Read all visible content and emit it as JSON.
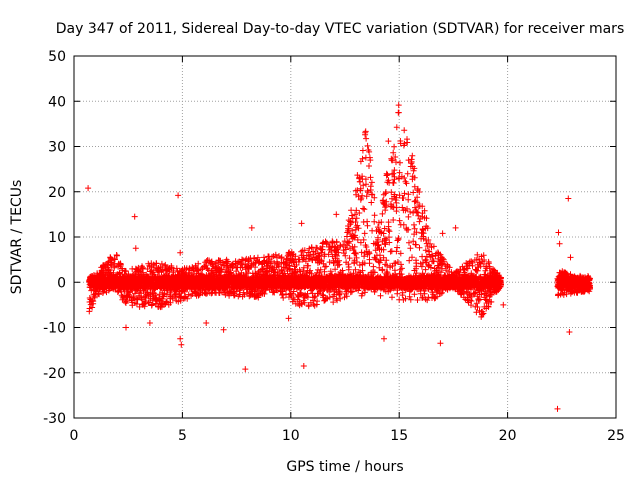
{
  "chart_data": {
    "type": "scatter",
    "title": "Day 347 of 2011, Sidereal Day-to-day VTEC variation (SDTVAR) for receiver mars",
    "xlabel": "GPS time / hours",
    "ylabel": "SDTVAR / TECUs",
    "xlim": [
      0,
      25
    ],
    "ylim": [
      -30,
      50
    ],
    "xticks": [
      0,
      5,
      10,
      15,
      20,
      25
    ],
    "yticks": [
      -30,
      -20,
      -10,
      0,
      10,
      20,
      30,
      40,
      50
    ],
    "grid": true,
    "marker": "+",
    "color": "#ff0000",
    "series": [
      {
        "name": "SDTVAR",
        "envelope_description": "Dense band of points; each entry gives time (hours) and approximate upper/lower extent in TECU",
        "envelope": [
          {
            "x": 0.7,
            "upper": 2.0,
            "lower": -7.5
          },
          {
            "x": 1.0,
            "upper": 2.0,
            "lower": -3.0
          },
          {
            "x": 1.9,
            "upper": 7.0,
            "lower": -1.5
          },
          {
            "x": 2.3,
            "upper": 2.5,
            "lower": -5.0
          },
          {
            "x": 3.7,
            "upper": 4.5,
            "lower": -6.0
          },
          {
            "x": 5.0,
            "upper": 3.0,
            "lower": -4.0
          },
          {
            "x": 6.2,
            "upper": 5.0,
            "lower": -2.5
          },
          {
            "x": 7.2,
            "upper": 5.0,
            "lower": -3.0
          },
          {
            "x": 8.5,
            "upper": 5.5,
            "lower": -3.5
          },
          {
            "x": 9.0,
            "upper": 6.0,
            "lower": -2.0
          },
          {
            "x": 10.5,
            "upper": 7.0,
            "lower": -5.5
          },
          {
            "x": 11.5,
            "upper": 9.0,
            "lower": -5.0
          },
          {
            "x": 12.5,
            "upper": 9.5,
            "lower": -4.0
          },
          {
            "x": 13.5,
            "upper": 35.0,
            "lower": -3.0
          },
          {
            "x": 14.0,
            "upper": 12.0,
            "lower": -3.0
          },
          {
            "x": 15.0,
            "upper": 41.0,
            "lower": -4.0
          },
          {
            "x": 16.5,
            "upper": 9.0,
            "lower": -4.0
          },
          {
            "x": 17.5,
            "upper": 2.0,
            "lower": -1.0
          },
          {
            "x": 18.8,
            "upper": 7.0,
            "lower": -8.0
          },
          {
            "x": 19.7,
            "upper": 1.0,
            "lower": -1.0
          },
          {
            "x": 22.3,
            "upper": 3.0,
            "lower": -3.0
          },
          {
            "x": 23.8,
            "upper": 0.0,
            "lower": -2.0
          }
        ],
        "outliers": [
          [
            0.65,
            20.8
          ],
          [
            2.8,
            14.5
          ],
          [
            2.85,
            7.5
          ],
          [
            4.8,
            19.2
          ],
          [
            4.9,
            -12.5
          ],
          [
            4.95,
            -13.8
          ],
          [
            4.9,
            6.5
          ],
          [
            6.9,
            -10.5
          ],
          [
            7.9,
            -19.2
          ],
          [
            8.2,
            12.0
          ],
          [
            9.9,
            -8.0
          ],
          [
            10.5,
            13.0
          ],
          [
            10.6,
            -18.5
          ],
          [
            11.6,
            9.0
          ],
          [
            12.1,
            15.0
          ],
          [
            13.3,
            -2.5
          ],
          [
            13.5,
            19.0
          ],
          [
            14.3,
            -12.5
          ],
          [
            14.5,
            31.2
          ],
          [
            16.9,
            -13.5
          ],
          [
            17.0,
            10.8
          ],
          [
            17.6,
            12.0
          ],
          [
            19.8,
            -5.0
          ],
          [
            22.3,
            -28.0
          ],
          [
            22.35,
            11.0
          ],
          [
            22.4,
            8.5
          ],
          [
            22.8,
            18.5
          ],
          [
            22.85,
            -11.0
          ],
          [
            22.9,
            5.5
          ],
          [
            2.4,
            -10.0
          ],
          [
            3.5,
            -9.0
          ],
          [
            6.1,
            -9.0
          ]
        ]
      }
    ]
  }
}
